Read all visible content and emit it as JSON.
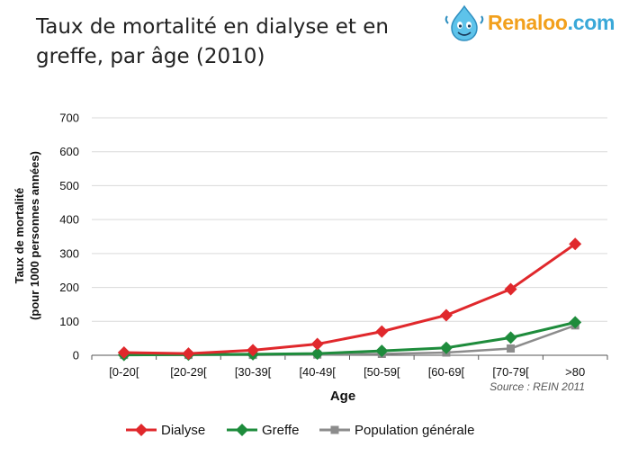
{
  "slide": {
    "title_line1": "Taux de mortalité en dialyse et en",
    "title_line2": "greffe, par âge (2010)"
  },
  "logo": {
    "text_part1": "Renaloo",
    "text_part2": ".com",
    "icon": "smiling-droplet-mascot-icon"
  },
  "source": "Source : REIN 2011",
  "colors": {
    "Dialyse": "#e0282c",
    "Greffe": "#1e8c3c",
    "Population générale": "#8c8c8c"
  },
  "chart_data": {
    "type": "line",
    "categories": [
      "[0-20[",
      "[20-29[",
      "[30-39[",
      "[40-49[",
      "[50-59[",
      "[60-69[",
      "[70-79[",
      ">80"
    ],
    "xlabel": "Age",
    "ylabel_line1": "Taux de mortalité",
    "ylabel_line2": "(pour 1000 personnes années)",
    "ylim": [
      0,
      700
    ],
    "yticks": [
      0,
      100,
      200,
      300,
      400,
      500,
      600,
      700
    ],
    "grid": true,
    "legend_position": "bottom",
    "series": [
      {
        "name": "Dialyse",
        "marker": "diamond",
        "values": [
          8,
          5,
          15,
          33,
          70,
          118,
          195,
          328
        ]
      },
      {
        "name": "Greffe",
        "marker": "diamond",
        "values": [
          1,
          2,
          3,
          5,
          13,
          22,
          52,
          97
        ]
      },
      {
        "name": "Population générale",
        "marker": "square",
        "values": [
          1,
          1,
          1,
          2,
          4,
          8,
          20,
          88
        ]
      }
    ]
  }
}
